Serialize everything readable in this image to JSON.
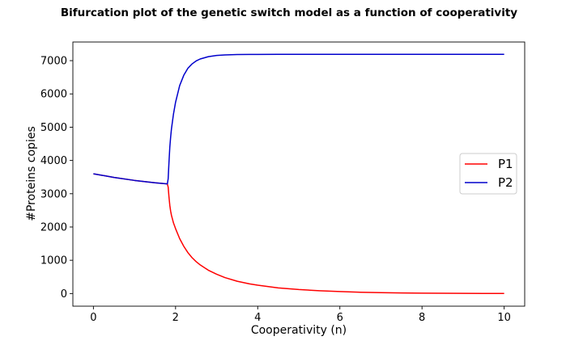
{
  "chart_data": {
    "type": "line",
    "title": "Bifurcation plot of the genetic switch model as a function of cooperativity",
    "xlabel": "Cooperativity (n)",
    "ylabel": "#Proteins copies",
    "xlim": [
      -0.5,
      10.5
    ],
    "ylim": [
      -380,
      7560
    ],
    "xticks": [
      0,
      2,
      4,
      6,
      8,
      10
    ],
    "xtick_labels": [
      "0",
      "2",
      "4",
      "6",
      "8",
      "10"
    ],
    "yticks": [
      0,
      1000,
      2000,
      3000,
      4000,
      5000,
      6000,
      7000
    ],
    "ytick_labels": [
      "0",
      "1000",
      "2000",
      "3000",
      "4000",
      "5000",
      "6000",
      "7000"
    ],
    "grid": false,
    "legend": {
      "position": "center-right"
    },
    "series": [
      {
        "name": "P1",
        "color": "#ff0000",
        "x": [
          0,
          0.5,
          1.0,
          1.5,
          1.8,
          1.82,
          1.84,
          1.86,
          1.88,
          1.9,
          1.95,
          2.0,
          2.1,
          2.2,
          2.3,
          2.4,
          2.5,
          2.6,
          2.8,
          3.0,
          3.2,
          3.5,
          3.8,
          4.0,
          4.5,
          5.0,
          5.5,
          6.0,
          6.5,
          7.0,
          7.5,
          8.0,
          8.5,
          9.0,
          9.5,
          10.0
        ],
        "y": [
          3600,
          3490,
          3400,
          3330,
          3295,
          3200,
          2900,
          2650,
          2480,
          2350,
          2120,
          1950,
          1650,
          1420,
          1230,
          1080,
          960,
          860,
          700,
          580,
          480,
          370,
          290,
          250,
          170,
          120,
          85,
          60,
          40,
          28,
          18,
          12,
          8,
          5,
          3,
          2
        ]
      },
      {
        "name": "P2",
        "color": "#0000cc",
        "x": [
          0,
          0.5,
          1.0,
          1.5,
          1.8,
          1.82,
          1.84,
          1.86,
          1.88,
          1.9,
          1.95,
          2.0,
          2.1,
          2.2,
          2.3,
          2.4,
          2.5,
          2.6,
          2.8,
          3.0,
          3.2,
          3.5,
          3.8,
          4.0,
          4.5,
          5.0,
          5.5,
          6.0,
          6.5,
          7.0,
          7.5,
          8.0,
          8.5,
          9.0,
          9.5,
          10.0
        ],
        "y": [
          3600,
          3490,
          3400,
          3330,
          3295,
          3450,
          3950,
          4400,
          4700,
          4950,
          5400,
          5750,
          6250,
          6560,
          6770,
          6900,
          6990,
          7050,
          7120,
          7155,
          7172,
          7183,
          7187,
          7188,
          7189,
          7190,
          7190,
          7190,
          7190,
          7190,
          7190,
          7190,
          7190,
          7190,
          7190,
          7190
        ]
      }
    ]
  }
}
